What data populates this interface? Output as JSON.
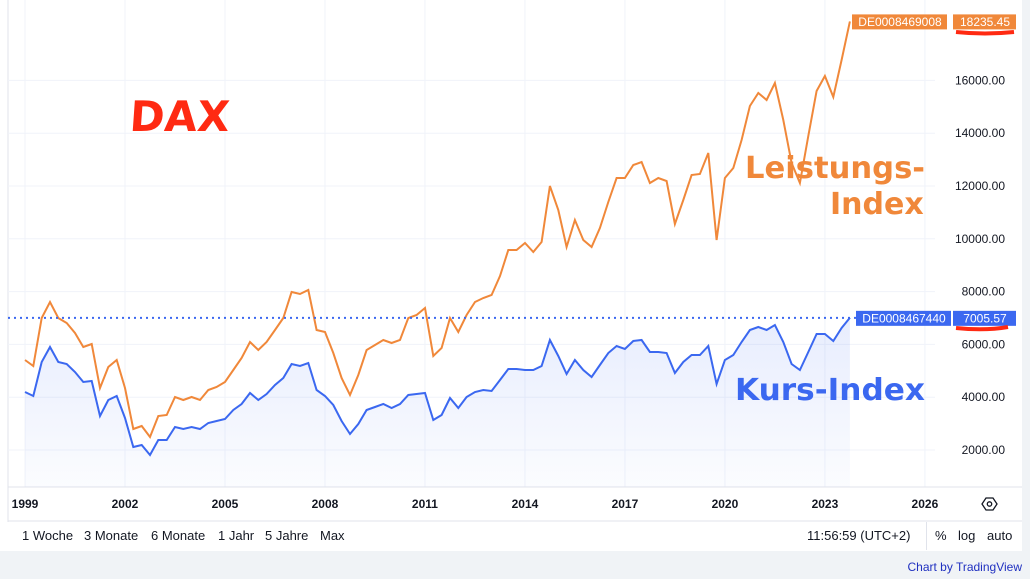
{
  "chart_data": {
    "type": "line",
    "title": "DAX",
    "x_start": 1999.0,
    "x_step": 0.25,
    "xlim": [
      1998.8,
      2027.5
    ],
    "ylim": [
      1000,
      18600
    ],
    "x_ticks": [
      "1999",
      "2002",
      "2005",
      "2008",
      "2011",
      "2014",
      "2017",
      "2020",
      "2023",
      "2026"
    ],
    "y_ticks": [
      "2000.00",
      "4000.00",
      "6000.00",
      "8000.00",
      "10000.00",
      "12000.00",
      "14000.00",
      "16000.00"
    ],
    "grid": true,
    "series": [
      {
        "name": "DE0008469008",
        "last": "18235.45",
        "color": "#f0883a",
        "annotation_line1": "Leistungs-",
        "annotation_line2": "Index",
        "values": [
          5409,
          5182,
          7000,
          7606,
          7000,
          6811,
          6432,
          5902,
          6015,
          4349,
          5144,
          5409,
          4349,
          2795,
          2909,
          2492,
          3288,
          3326,
          4008,
          3894,
          4008,
          3894,
          4273,
          4386,
          4576,
          5030,
          5485,
          6091,
          5788,
          6091,
          6546,
          7000,
          7985,
          7909,
          8061,
          6546,
          6470,
          5674,
          4727,
          4083,
          4841,
          5788,
          5977,
          6167,
          6053,
          6167,
          7000,
          7114,
          7379,
          5561,
          5864,
          7000,
          6470,
          7114,
          7606,
          7758,
          7871,
          8591,
          9576,
          9576,
          9841,
          9500,
          9879,
          12000,
          11091,
          9689,
          10712,
          9955,
          9689,
          10409,
          11394,
          12303,
          12303,
          12796,
          12909,
          12114,
          12303,
          12190,
          10561,
          11470,
          12417,
          12455,
          13250,
          9955,
          12303,
          12682,
          13743,
          15031,
          15523,
          15258,
          15902,
          14500,
          12872,
          12114,
          13894,
          15599,
          16167,
          15371,
          16773,
          18235
        ]
      },
      {
        "name": "DE0008467440",
        "last": "7005.57",
        "color": "#3b68f0",
        "annotation": "Kurs-Index",
        "values": [
          4197,
          4046,
          5333,
          5902,
          5333,
          5258,
          4955,
          4576,
          4614,
          3288,
          3894,
          4046,
          3212,
          2114,
          2189,
          1811,
          2379,
          2379,
          2871,
          2795,
          2871,
          2795,
          3023,
          3099,
          3174,
          3515,
          3742,
          4159,
          3894,
          4121,
          4462,
          4727,
          5258,
          5182,
          5296,
          4273,
          4046,
          3705,
          3099,
          2606,
          2985,
          3515,
          3629,
          3742,
          3591,
          3742,
          4083,
          4121,
          4159,
          3136,
          3326,
          3970,
          3591,
          4008,
          4197,
          4273,
          4235,
          4652,
          5068,
          5068,
          5030,
          5030,
          5182,
          6167,
          5561,
          4879,
          5409,
          5030,
          4765,
          5220,
          5674,
          5940,
          5826,
          6129,
          6167,
          5712,
          5712,
          5674,
          4917,
          5333,
          5598,
          5598,
          5940,
          4500,
          5409,
          5598,
          6091,
          6546,
          6659,
          6546,
          6735,
          6091,
          5258,
          5030,
          5712,
          6394,
          6394,
          6129,
          6621,
          7006
        ]
      }
    ]
  },
  "toolbar": {
    "ranges": [
      "1 Woche",
      "3 Monate",
      "6 Monate",
      "1 Jahr",
      "5 Jahre",
      "Max"
    ],
    "time": "11:56:59 (UTC+2)",
    "percent": "%",
    "log": "log",
    "auto": "auto"
  },
  "credit": "Chart by TradingView",
  "colors": {
    "annotation_red": "#ff2a12"
  }
}
